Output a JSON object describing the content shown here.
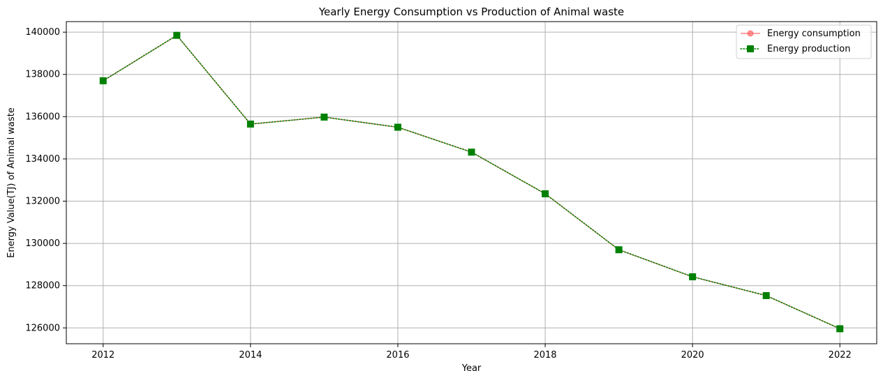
{
  "chart_data": {
    "type": "line",
    "title": "Yearly Energy Consumption vs Production of Animal waste",
    "xlabel": "Year",
    "ylabel": "Energy Value(TJ) of Animal waste",
    "x": [
      2012,
      2013,
      2014,
      2015,
      2016,
      2017,
      2018,
      2019,
      2020,
      2021,
      2022
    ],
    "xlim": [
      2011.5,
      2022.5
    ],
    "ylim": [
      125250,
      140500
    ],
    "xticks": [
      "2012",
      "2014",
      "2016",
      "2018",
      "2020",
      "2022"
    ],
    "yticks": [
      "126000",
      "128000",
      "130000",
      "132000",
      "134000",
      "136000",
      "138000",
      "140000"
    ],
    "grid": true,
    "legend_position": "top-right",
    "series": [
      {
        "name": "Energy consumption",
        "color": "#ff6666",
        "marker": "circle",
        "line_style": "solid",
        "values": [
          137700,
          139850,
          135650,
          135980,
          135500,
          134320,
          132350,
          129700,
          128420,
          127530,
          125960
        ]
      },
      {
        "name": "Energy production",
        "color": "#008000",
        "marker": "square",
        "line_style": "dotted",
        "values": [
          137700,
          139850,
          135650,
          135980,
          135500,
          134320,
          132350,
          129700,
          128420,
          127530,
          125960
        ]
      }
    ]
  }
}
